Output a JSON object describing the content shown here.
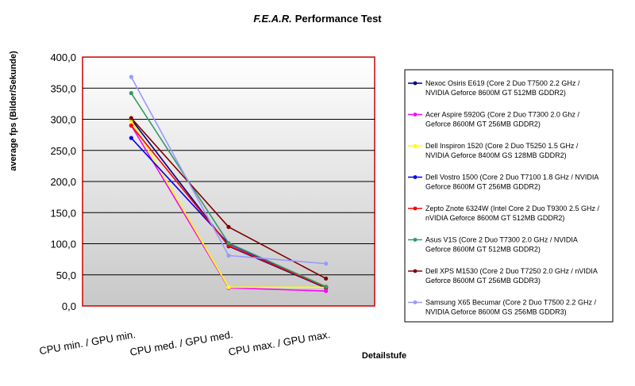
{
  "chart_data": {
    "type": "line",
    "title_prefix": "F.E.A.R.",
    "title_suffix": "Performance Test",
    "xlabel": "Detailstufe",
    "ylabel": "average fps (Bilder/Sekunde)",
    "categories": [
      "CPU min. / GPU min.",
      "CPU med. / GPU med.",
      "CPU max. / GPU max."
    ],
    "ylim": [
      0,
      400
    ],
    "yticks": [
      "0,0",
      "50,0",
      "100,0",
      "150,0",
      "200,0",
      "250,0",
      "300,0",
      "350,0",
      "400,0"
    ],
    "grid": true,
    "legend_position": "right",
    "colors": {
      "plot_border": "#cc0000",
      "plot_bg_top": "#ffffff",
      "plot_bg_bottom": "#c8c8c8",
      "grid": "#000000"
    },
    "series": [
      {
        "name_lines": [
          "Nexoc Osiris E619 (Core 2 Duo T7500 2.2 GHz /",
          "NVIDIA Geforce 8600M GT 512MB GDDR2)"
        ],
        "color": "#000080",
        "values": [
          300,
          96,
          29
        ]
      },
      {
        "name_lines": [
          "Acer Aspire 5920G (Core 2 Duo T7300 2.0 Ghz /",
          "Geforce 8600M GT 256MB GDDR2)"
        ],
        "color": "#ff00ff",
        "values": [
          290,
          29,
          24
        ]
      },
      {
        "name_lines": [
          "Dell Inspiron 1520 (Core 2 Duo T5250 1.5 GHz /",
          "NVIDIA Geforce 8400M GS 128MB GDDR2)"
        ],
        "color": "#ffff00",
        "values": [
          298,
          30,
          30
        ]
      },
      {
        "name_lines": [
          "Dell Vostro 1500 (Core 2 Duo T7100 1.8 GHz / NVIDIA",
          "Geforce 8600M GT 256MB GDDR2)"
        ],
        "color": "#0000ff",
        "values": [
          270,
          100,
          30
        ]
      },
      {
        "name_lines": [
          "Zepto Znote 6324W (Intel Core 2 Duo T9300 2.5 GHz /",
          "nVIDIA Geforce 8600M GT 512MB GDDR2)"
        ],
        "color": "#ff0000",
        "values": [
          290,
          97,
          30
        ]
      },
      {
        "name_lines": [
          "Asus V1S (Core 2 Duo T7300 2.0 GHz / NVIDIA",
          "Geforce 8600M GT 512MB GDDR2)"
        ],
        "color": "#339966",
        "values": [
          342,
          101,
          31
        ]
      },
      {
        "name_lines": [
          "Dell XPS M1530 (Core 2 Duo T7250 2.0 GHz / nVIDIA",
          "Geforce 8600M GT 256MB GDDR3)"
        ],
        "color": "#800000",
        "values": [
          302,
          127,
          44
        ]
      },
      {
        "name_lines": [
          "Samsung X65 Becumar (Core 2 Duo T7500 2.2 GHz /",
          "NVIDIA Geforce 8600M GS 256MB GDDR3)"
        ],
        "color": "#9999ff",
        "values": [
          368,
          81,
          68
        ]
      }
    ]
  }
}
